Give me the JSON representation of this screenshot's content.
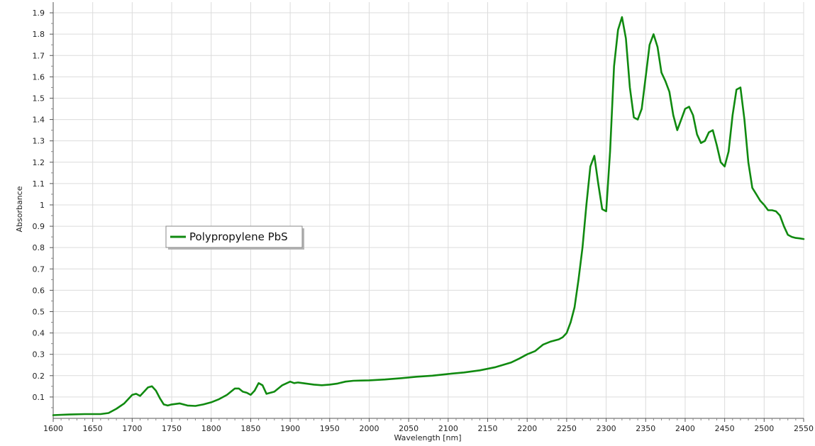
{
  "chart_data": {
    "type": "line",
    "title": "",
    "xlabel": "Wavelength [nm]",
    "ylabel": "Absorbance",
    "xlim": [
      1600,
      2550
    ],
    "ylim": [
      0,
      1.95
    ],
    "grid": true,
    "legend_position": "left-middle",
    "x_ticks": [
      "1600",
      "1650",
      "1700",
      "1750",
      "1800",
      "1850",
      "1900",
      "1950",
      "2000",
      "2050",
      "2100",
      "2150",
      "2200",
      "2250",
      "2300",
      "2350",
      "2400",
      "2450",
      "2500",
      "2550"
    ],
    "y_ticks": [
      "0.1",
      "0.2",
      "0.3",
      "0.4",
      "0.5",
      "0.6",
      "0.7",
      "0.8",
      "0.9",
      "1",
      "1.1",
      "1.2",
      "1.3",
      "1.4",
      "1.5",
      "1.6",
      "1.7",
      "1.8",
      "1.9"
    ],
    "colors": {
      "series": "#108a10",
      "grid": "#dcdcdc",
      "axis": "#555555"
    },
    "series": [
      {
        "name": "Polypropylene PbS",
        "x": [
          1600,
          1620,
          1640,
          1660,
          1670,
          1680,
          1690,
          1695,
          1700,
          1705,
          1710,
          1715,
          1720,
          1725,
          1730,
          1735,
          1740,
          1745,
          1750,
          1760,
          1770,
          1780,
          1790,
          1800,
          1810,
          1820,
          1830,
          1835,
          1840,
          1845,
          1850,
          1855,
          1860,
          1865,
          1870,
          1875,
          1880,
          1890,
          1900,
          1905,
          1910,
          1920,
          1930,
          1940,
          1950,
          1960,
          1970,
          1980,
          1990,
          2000,
          2020,
          2040,
          2060,
          2080,
          2100,
          2120,
          2140,
          2160,
          2180,
          2190,
          2200,
          2210,
          2220,
          2230,
          2240,
          2245,
          2250,
          2255,
          2260,
          2265,
          2270,
          2275,
          2280,
          2285,
          2290,
          2295,
          2300,
          2305,
          2310,
          2315,
          2320,
          2325,
          2330,
          2335,
          2340,
          2345,
          2350,
          2355,
          2360,
          2365,
          2370,
          2375,
          2380,
          2385,
          2390,
          2395,
          2400,
          2405,
          2410,
          2415,
          2420,
          2425,
          2430,
          2435,
          2440,
          2445,
          2450,
          2455,
          2460,
          2465,
          2470,
          2475,
          2480,
          2485,
          2490,
          2495,
          2500,
          2505,
          2510,
          2515,
          2520,
          2525,
          2530,
          2535,
          2540,
          2545,
          2550
        ],
        "y": [
          0.015,
          0.018,
          0.02,
          0.02,
          0.025,
          0.045,
          0.07,
          0.09,
          0.11,
          0.115,
          0.105,
          0.125,
          0.145,
          0.15,
          0.13,
          0.095,
          0.065,
          0.06,
          0.065,
          0.07,
          0.06,
          0.058,
          0.065,
          0.075,
          0.09,
          0.11,
          0.14,
          0.14,
          0.125,
          0.12,
          0.11,
          0.13,
          0.165,
          0.155,
          0.115,
          0.12,
          0.125,
          0.155,
          0.172,
          0.165,
          0.168,
          0.163,
          0.158,
          0.155,
          0.158,
          0.163,
          0.172,
          0.176,
          0.177,
          0.178,
          0.182,
          0.188,
          0.195,
          0.2,
          0.208,
          0.215,
          0.225,
          0.24,
          0.262,
          0.28,
          0.3,
          0.315,
          0.345,
          0.36,
          0.37,
          0.38,
          0.4,
          0.45,
          0.52,
          0.65,
          0.8,
          1.0,
          1.18,
          1.23,
          1.1,
          0.98,
          0.97,
          1.25,
          1.65,
          1.82,
          1.88,
          1.78,
          1.55,
          1.41,
          1.4,
          1.45,
          1.6,
          1.75,
          1.8,
          1.74,
          1.62,
          1.58,
          1.53,
          1.42,
          1.35,
          1.4,
          1.45,
          1.46,
          1.42,
          1.33,
          1.29,
          1.3,
          1.34,
          1.35,
          1.28,
          1.2,
          1.18,
          1.25,
          1.42,
          1.54,
          1.55,
          1.4,
          1.2,
          1.08,
          1.05,
          1.02,
          1.0,
          0.975,
          0.975,
          0.97,
          0.95,
          0.9,
          0.86,
          0.85,
          0.845,
          0.843,
          0.84
        ]
      }
    ]
  }
}
